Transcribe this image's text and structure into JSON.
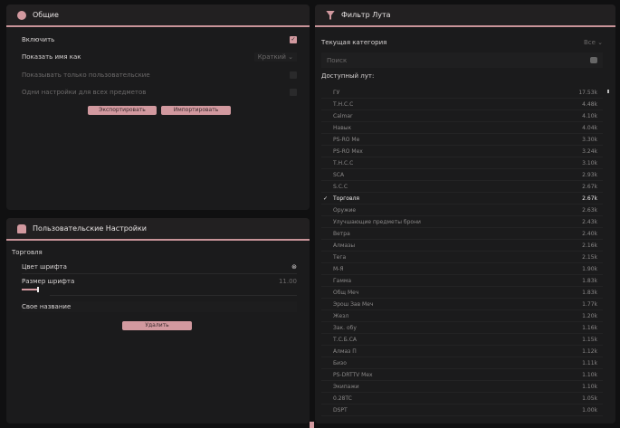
{
  "general": {
    "title": "Общие",
    "icon": "gear-icon",
    "enable_label": "Включить",
    "enabled": true,
    "show_name_label": "Показать имя как",
    "show_name_value": "Краткий",
    "custom_only_label": "Показывать только пользовательские",
    "same_settings_label": "Одни настройки для всех предметов",
    "export_label": "Экспортировать",
    "import_label": "Импортировать"
  },
  "custom": {
    "title": "Пользовательские Настройки",
    "group_label": "Торговля",
    "font_color_label": "Цвет шрифта",
    "font_size_label": "Размер шрифта",
    "font_size_value": "11.00",
    "font_size_fraction": 0.1,
    "custom_name_placeholder": "Свое название",
    "delete_label": "Удалить"
  },
  "filter": {
    "title": "Фильтр Лута",
    "category_label": "Текущая категория",
    "category_value": "Все",
    "search_placeholder": "Поиск",
    "available_label": "Доступный лут:",
    "items": [
      {
        "name": "ГУ",
        "count": "17.53k"
      },
      {
        "name": "Т.Н.С.С",
        "count": "4.48k"
      },
      {
        "name": "Calmar",
        "count": "4.10k"
      },
      {
        "name": "Навык",
        "count": "4.04k"
      },
      {
        "name": "PS-RO Ме",
        "count": "3.30k"
      },
      {
        "name": "PS-RO Мех",
        "count": "3.24k"
      },
      {
        "name": "Т.Н.С.С",
        "count": "3.10k"
      },
      {
        "name": "SCA",
        "count": "2.93k"
      },
      {
        "name": "S.С.С",
        "count": "2.67k"
      },
      {
        "name": "Торговля",
        "count": "2.67k",
        "selected": true
      },
      {
        "name": "Оружие",
        "count": "2.63k"
      },
      {
        "name": "Улучшающие предметы брони",
        "count": "2.43k"
      },
      {
        "name": "Ветра",
        "count": "2.40k"
      },
      {
        "name": "Алмазы",
        "count": "2.16k"
      },
      {
        "name": "Тега",
        "count": "2.15k"
      },
      {
        "name": "М-Я",
        "count": "1.90k"
      },
      {
        "name": "Гамма",
        "count": "1.83k"
      },
      {
        "name": "Общ Меч",
        "count": "1.83k"
      },
      {
        "name": "Эрош Зав Меч",
        "count": "1.77k"
      },
      {
        "name": "Жезл",
        "count": "1.20k"
      },
      {
        "name": "Зак. обу",
        "count": "1.16k"
      },
      {
        "name": "Т.С.Б.СА",
        "count": "1.15k"
      },
      {
        "name": "Алмаз П",
        "count": "1.12k"
      },
      {
        "name": "Бизо",
        "count": "1.11k"
      },
      {
        "name": "PS-DRTTV Мех",
        "count": "1.10k"
      },
      {
        "name": "Экипажи",
        "count": "1.10k"
      },
      {
        "name": "0.28TC",
        "count": "1.05k"
      },
      {
        "name": "DSPT",
        "count": "1.00k"
      }
    ]
  },
  "colors": {
    "accent": "#d2999f",
    "panel": "#1b1b1c",
    "background": "#101011"
  }
}
